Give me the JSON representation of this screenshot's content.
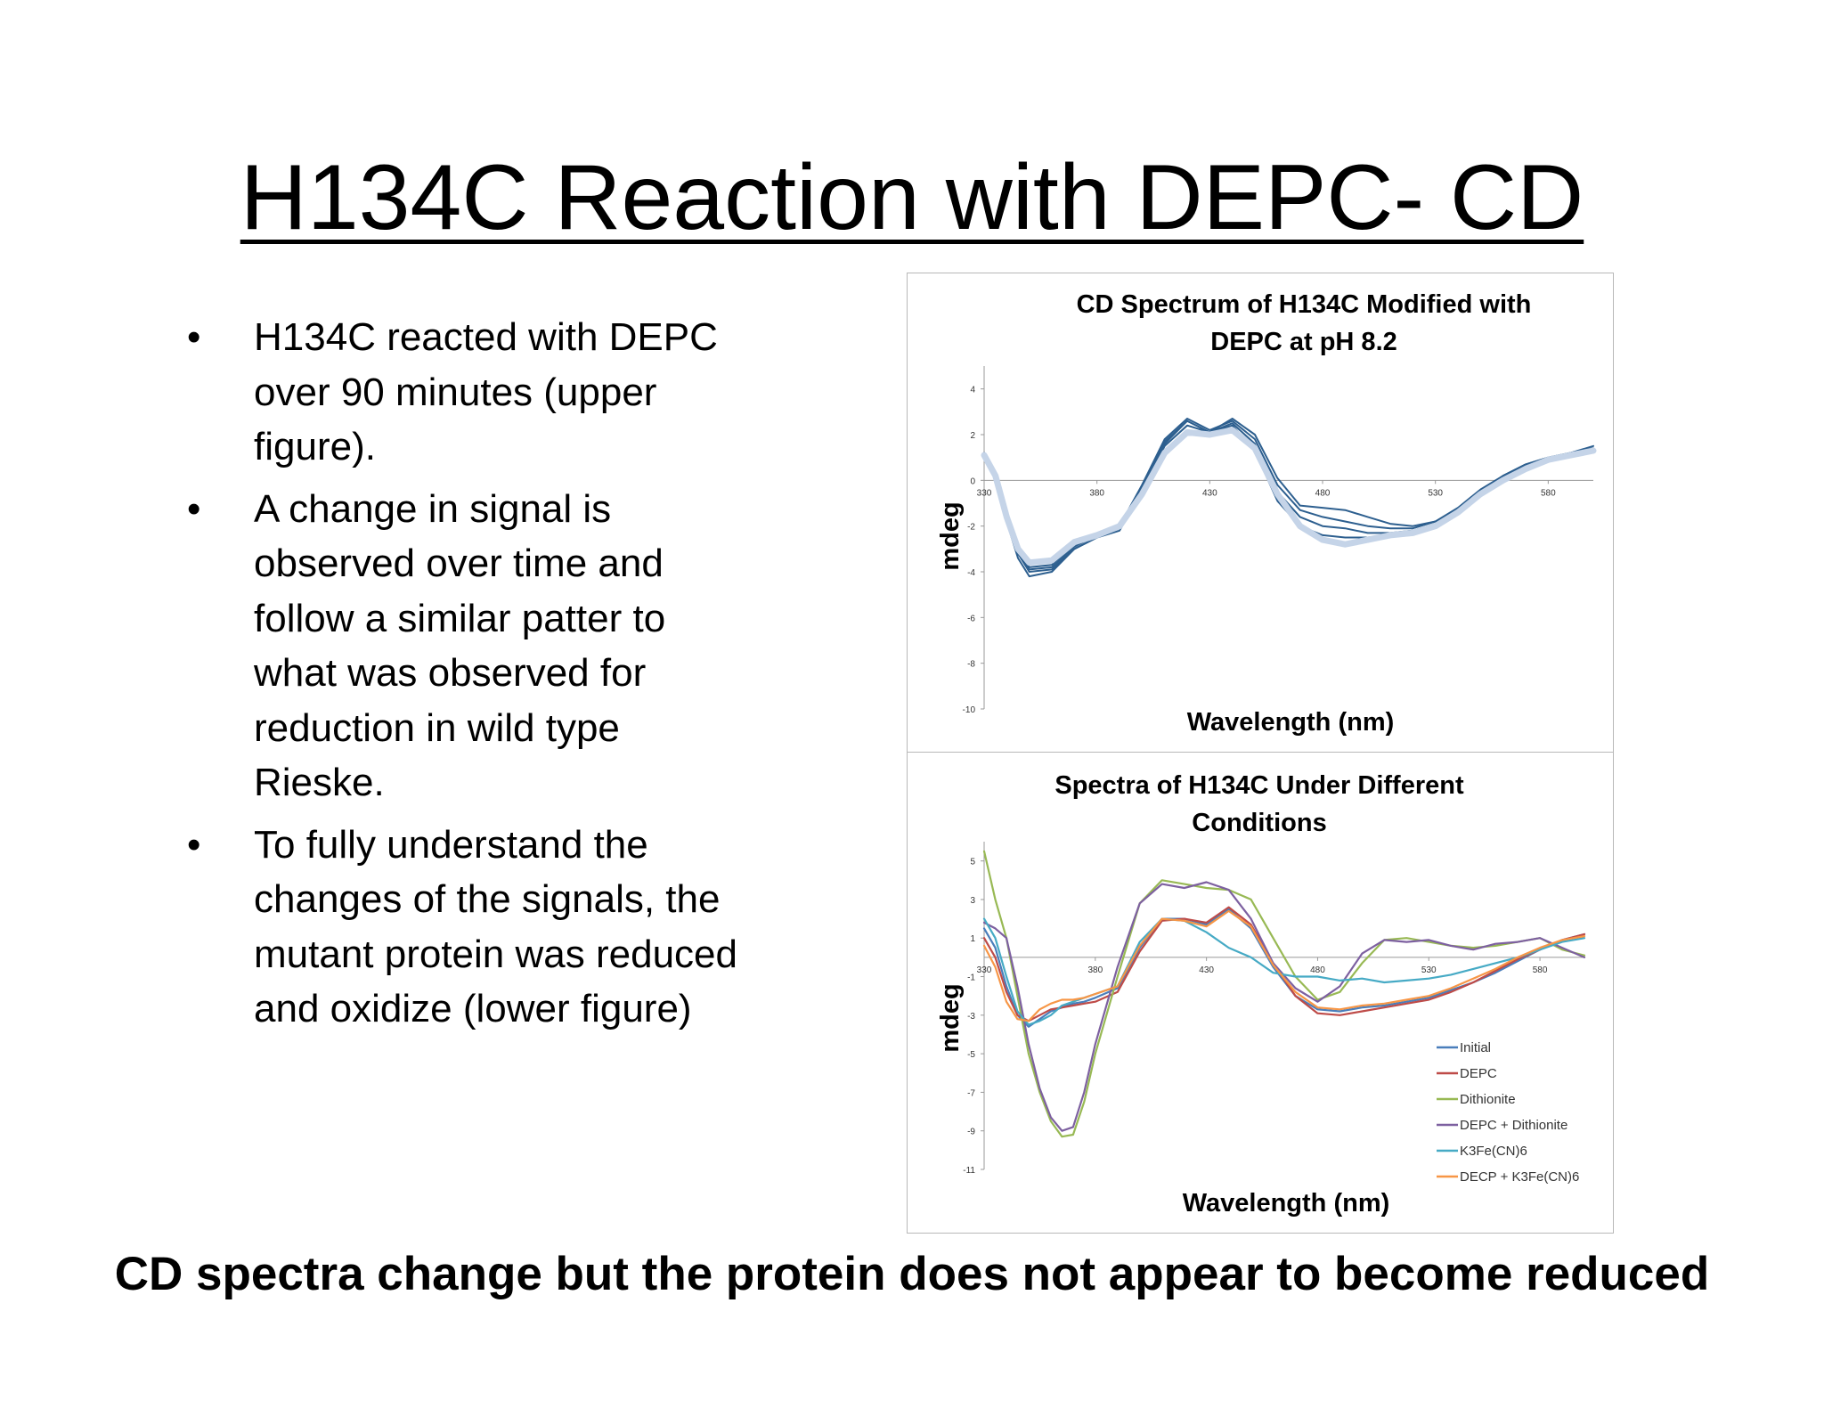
{
  "slide": {
    "title": "H134C Reaction with DEPC- CD",
    "bullets": [
      {
        "lines": [
          "H134C reacted with DEPC",
          "over 90 minutes (upper",
          "figure)."
        ]
      },
      {
        "lines": [
          "A change in signal is",
          "observed over time and",
          "follow a similar patter to",
          "what was observed for",
          "reduction in wild type",
          "Rieske."
        ]
      },
      {
        "lines": [
          "To fully understand the",
          "changes of the signals, the",
          "mutant protein was reduced",
          "and oxidize (lower figure)"
        ]
      }
    ],
    "bullet_glyph": "•",
    "conclusion": "CD spectra change but the protein does not appear to become reduced"
  },
  "chart_data": [
    {
      "type": "line",
      "title": [
        "CD Spectrum of H134C Modified with",
        "DEPC at pH 8.2"
      ],
      "xlabel": "Wavelength (nm)",
      "ylabel": "mdeg",
      "xlim": [
        330,
        600
      ],
      "ylim": [
        -10,
        5
      ],
      "xticks": [
        330,
        380,
        430,
        480,
        530,
        580
      ],
      "yticks": [
        4,
        2,
        0,
        -2,
        -4,
        -6,
        -8,
        -10
      ],
      "grid": false,
      "legend": "none",
      "x": [
        330,
        335,
        340,
        345,
        350,
        360,
        370,
        380,
        390,
        400,
        410,
        420,
        430,
        440,
        450,
        460,
        470,
        480,
        490,
        500,
        510,
        520,
        530,
        540,
        550,
        560,
        570,
        580,
        590,
        600
      ],
      "series": [
        {
          "color": "#2d5f8f",
          "width": 2,
          "values": [
            1.2,
            0.3,
            -1.5,
            -3.0,
            -3.8,
            -3.7,
            -2.8,
            -2.5,
            -2.0,
            -0.3,
            1.6,
            2.6,
            2.1,
            2.7,
            2.0,
            0.1,
            -1.1,
            -1.2,
            -1.3,
            -1.6,
            -1.9,
            -2.0,
            -1.8,
            -1.3,
            -0.5,
            0.1,
            0.6,
            0.9,
            1.2,
            1.4
          ]
        },
        {
          "color": "#2d5f8f",
          "width": 2,
          "values": [
            1.2,
            0.2,
            -1.6,
            -3.1,
            -3.9,
            -3.8,
            -2.9,
            -2.4,
            -2.0,
            -0.2,
            1.8,
            2.7,
            2.2,
            2.6,
            1.8,
            -0.2,
            -1.3,
            -1.6,
            -1.8,
            -2.0,
            -2.1,
            -2.1,
            -1.8,
            -1.2,
            -0.4,
            0.2,
            0.6,
            0.9,
            1.2,
            1.4
          ]
        },
        {
          "color": "#2d5f8f",
          "width": 2,
          "values": [
            1.2,
            0.2,
            -1.7,
            -3.2,
            -4.0,
            -3.9,
            -3.0,
            -2.5,
            -2.1,
            -0.3,
            1.7,
            2.6,
            2.1,
            2.5,
            1.6,
            -0.5,
            -1.6,
            -2.0,
            -2.1,
            -2.3,
            -2.3,
            -2.2,
            -1.9,
            -1.3,
            -0.5,
            0.2,
            0.7,
            1.0,
            1.2,
            1.4
          ]
        },
        {
          "color": "#2d5f8f",
          "width": 2,
          "values": [
            1.2,
            0.1,
            -1.8,
            -3.4,
            -4.2,
            -4.0,
            -3.0,
            -2.5,
            -2.2,
            -0.5,
            1.5,
            2.4,
            2.1,
            2.4,
            1.3,
            -0.9,
            -2.0,
            -2.4,
            -2.5,
            -2.5,
            -2.4,
            -2.3,
            -2.0,
            -1.4,
            -0.5,
            0.2,
            0.7,
            1.0,
            1.2,
            1.5
          ]
        },
        {
          "color": "#c5d4e8",
          "width": 7,
          "values": [
            1.1,
            0.2,
            -1.6,
            -3.0,
            -3.6,
            -3.5,
            -2.7,
            -2.4,
            -2.0,
            -0.6,
            1.2,
            2.1,
            2.0,
            2.2,
            1.4,
            -0.6,
            -2.0,
            -2.6,
            -2.8,
            -2.6,
            -2.4,
            -2.3,
            -2.0,
            -1.4,
            -0.6,
            0.0,
            0.5,
            0.9,
            1.1,
            1.3
          ]
        }
      ]
    },
    {
      "type": "line",
      "title": [
        "Spectra of H134C Under Different",
        "Conditions"
      ],
      "xlabel": "Wavelength (nm)",
      "ylabel": "mdeg",
      "xlim": [
        330,
        600
      ],
      "ylim": [
        -11,
        6
      ],
      "xticks": [
        330,
        380,
        430,
        480,
        530,
        580
      ],
      "yticks": [
        5,
        3,
        1,
        -1,
        -3,
        -5,
        -7,
        -9,
        -11
      ],
      "grid": false,
      "legend": "bottom-right",
      "x": [
        330,
        335,
        340,
        345,
        350,
        355,
        360,
        365,
        370,
        375,
        380,
        390,
        400,
        410,
        420,
        430,
        440,
        450,
        460,
        470,
        480,
        490,
        500,
        510,
        520,
        530,
        540,
        550,
        560,
        570,
        580,
        590,
        600
      ],
      "series": [
        {
          "name": "Initial",
          "color": "#4a7ebb",
          "values": [
            1.5,
            0.5,
            -1.5,
            -3.0,
            -3.6,
            -3.2,
            -2.8,
            -2.6,
            -2.4,
            -2.3,
            -2.1,
            -1.6,
            0.5,
            2.0,
            2.0,
            1.7,
            2.5,
            1.5,
            -0.5,
            -2.0,
            -2.7,
            -2.8,
            -2.6,
            -2.5,
            -2.3,
            -2.1,
            -1.7,
            -1.3,
            -0.8,
            -0.2,
            0.4,
            0.9,
            1.2
          ]
        },
        {
          "name": "DEPC",
          "color": "#be4b48",
          "values": [
            1.0,
            0.0,
            -1.8,
            -3.0,
            -3.3,
            -3.0,
            -2.7,
            -2.6,
            -2.5,
            -2.4,
            -2.3,
            -1.8,
            0.3,
            1.9,
            2.0,
            1.8,
            2.6,
            1.7,
            -0.3,
            -2.0,
            -2.9,
            -3.0,
            -2.8,
            -2.6,
            -2.4,
            -2.2,
            -1.8,
            -1.3,
            -0.7,
            -0.1,
            0.4,
            0.9,
            1.2
          ]
        },
        {
          "name": "Dithionite",
          "color": "#98b954",
          "values": [
            5.5,
            3.0,
            1.0,
            -2.0,
            -5.0,
            -7.0,
            -8.5,
            -9.3,
            -9.2,
            -7.5,
            -5.0,
            -1.0,
            2.8,
            4.0,
            3.8,
            3.6,
            3.5,
            3.0,
            1.0,
            -1.0,
            -2.2,
            -1.8,
            -0.3,
            0.9,
            1.0,
            0.8,
            0.6,
            0.5,
            0.6,
            0.8,
            1.0,
            0.4,
            0.1
          ]
        },
        {
          "name": "DEPC + Dithionite",
          "color": "#7d60a0",
          "values": [
            1.8,
            1.5,
            1.0,
            -1.5,
            -4.5,
            -6.8,
            -8.3,
            -9.0,
            -8.8,
            -7.0,
            -4.5,
            -0.5,
            2.8,
            3.8,
            3.6,
            3.9,
            3.5,
            2.0,
            -0.3,
            -1.6,
            -2.3,
            -1.5,
            0.2,
            0.9,
            0.8,
            0.9,
            0.6,
            0.4,
            0.7,
            0.8,
            1.0,
            0.5,
            0.0
          ]
        },
        {
          "name": "K3Fe(CN)6",
          "color": "#46aac5",
          "values": [
            2.0,
            1.0,
            -1.0,
            -2.8,
            -3.5,
            -3.3,
            -3.0,
            -2.5,
            -2.3,
            -2.1,
            -1.9,
            -1.5,
            0.8,
            2.0,
            1.9,
            1.3,
            0.5,
            0.0,
            -0.8,
            -1.0,
            -1.0,
            -1.2,
            -1.1,
            -1.3,
            -1.2,
            -1.1,
            -0.9,
            -0.6,
            -0.3,
            0.0,
            0.4,
            0.8,
            1.0
          ]
        },
        {
          "name": "DECP + K3Fe(CN)6",
          "color": "#f79646",
          "values": [
            0.6,
            -0.5,
            -2.3,
            -3.2,
            -3.3,
            -2.7,
            -2.4,
            -2.2,
            -2.2,
            -2.1,
            -1.9,
            -1.5,
            0.6,
            2.0,
            1.9,
            1.6,
            2.4,
            1.6,
            -0.4,
            -1.8,
            -2.6,
            -2.7,
            -2.5,
            -2.4,
            -2.2,
            -2.0,
            -1.6,
            -1.1,
            -0.6,
            0.0,
            0.5,
            0.9,
            1.1
          ]
        }
      ]
    }
  ]
}
